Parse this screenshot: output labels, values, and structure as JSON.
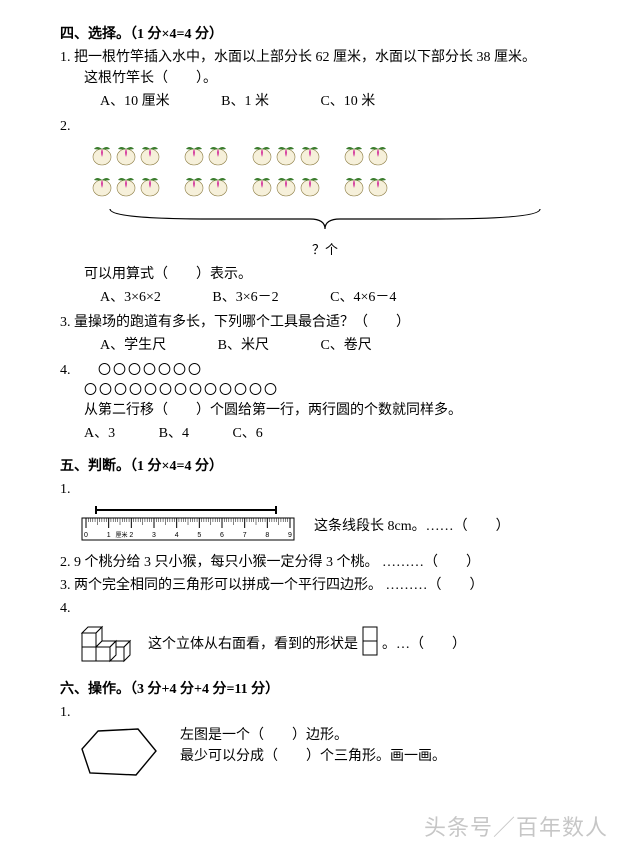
{
  "sec4": {
    "title": "四、选择。（1 分×4=4 分）",
    "q1": {
      "num": "1.",
      "line1": "把一根竹竿插入水中，水面以上部分长 62 厘米，水面以下部分长 38 厘米。",
      "line2": "这根竹竿长（　　）。",
      "optA": "A、10 厘米",
      "optB": "B、1 米",
      "optC": "C、10 米"
    },
    "q2": {
      "num": "2.",
      "groups": [
        6,
        4,
        6,
        4
      ],
      "peach_fill": "#f6f0da",
      "peach_tip": "#d63ea0",
      "peach_leaf": "#3b7d2e",
      "qmark": "？个",
      "line1": "可以用算式（　　）表示。",
      "optA": "A、3×6×2",
      "optB": "B、3×6－2",
      "optC": "C、4×6－4"
    },
    "q3": {
      "num": "3.",
      "text": "量操场的跑道有多长，下列哪个工具最合适？（　　）",
      "optA": "A、学生尺",
      "optB": "B、米尺",
      "optC": "C、卷尺"
    },
    "q4": {
      "num": "4.",
      "row1": "〇〇〇〇〇〇〇",
      "row2": "〇〇〇〇〇〇〇〇〇〇〇〇〇",
      "text": "从第二行移（　　）个圆给第一行，两行圆的个数就同样多。",
      "optA": "A、3",
      "optB": "B、4",
      "optC": "C、6"
    }
  },
  "sec5": {
    "title": "五、判断。（1 分×4=4 分）",
    "q1": {
      "num": "1.",
      "text": "这条线段长 8cm。……（　　）"
    },
    "q2": {
      "num": "2.",
      "text": "9 个桃分给 3 只小猴，每只小猴一定分得 3 个桃。 ………（　　）"
    },
    "q3": {
      "num": "3.",
      "text": "两个完全相同的三角形可以拼成一个平行四边形。 ………（　　）"
    },
    "q4": {
      "num": "4.",
      "pre": "这个立体从右面看，看到的形状是",
      "post": " 。…（　　）"
    }
  },
  "sec6": {
    "title": "六、操作。（3 分+4 分+4 分=11 分）",
    "q1": {
      "num": "1.",
      "line1": "左图是一个（　　）边形。",
      "line2": "最少可以分成（　　）个三角形。画一画。"
    }
  },
  "watermark": "头条号／百年数人",
  "colors": {
    "text": "#000000",
    "bg": "#ffffff",
    "ruler_line": "#000000"
  }
}
